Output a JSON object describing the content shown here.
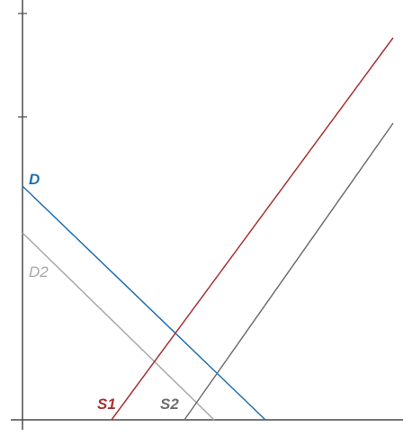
{
  "diagram": {
    "colors": {
      "axis": "#4a4a4a",
      "demand": "#1f6fb2",
      "demand2": "#a8a8a8",
      "supply1": "#a83232",
      "supply2": "#6e6e6e"
    },
    "labels": {
      "demand": "D",
      "demand2": "D2",
      "supply1": "S1",
      "supply2": "S2"
    }
  }
}
